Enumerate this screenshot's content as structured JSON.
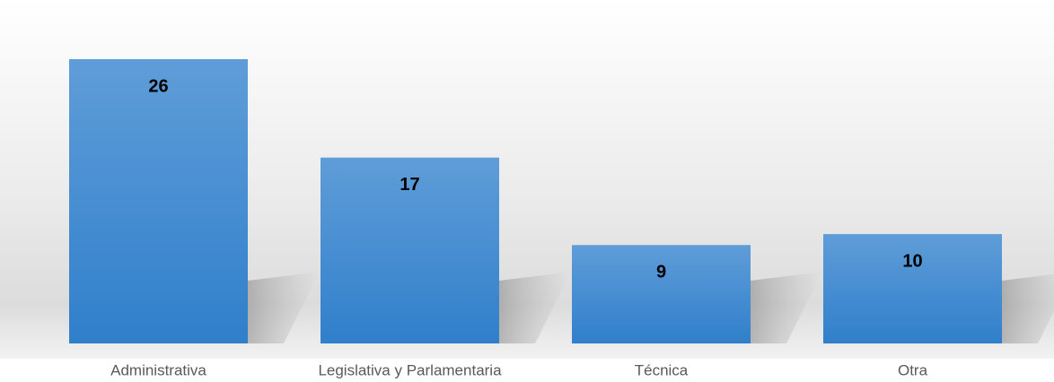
{
  "chart_data": {
    "type": "bar",
    "categories": [
      "Administrativa",
      "Legislativa y Parlamentaria",
      "Técnica",
      "Otra"
    ],
    "values": [
      26,
      17,
      9,
      10
    ],
    "color": "#5b9bd5"
  }
}
